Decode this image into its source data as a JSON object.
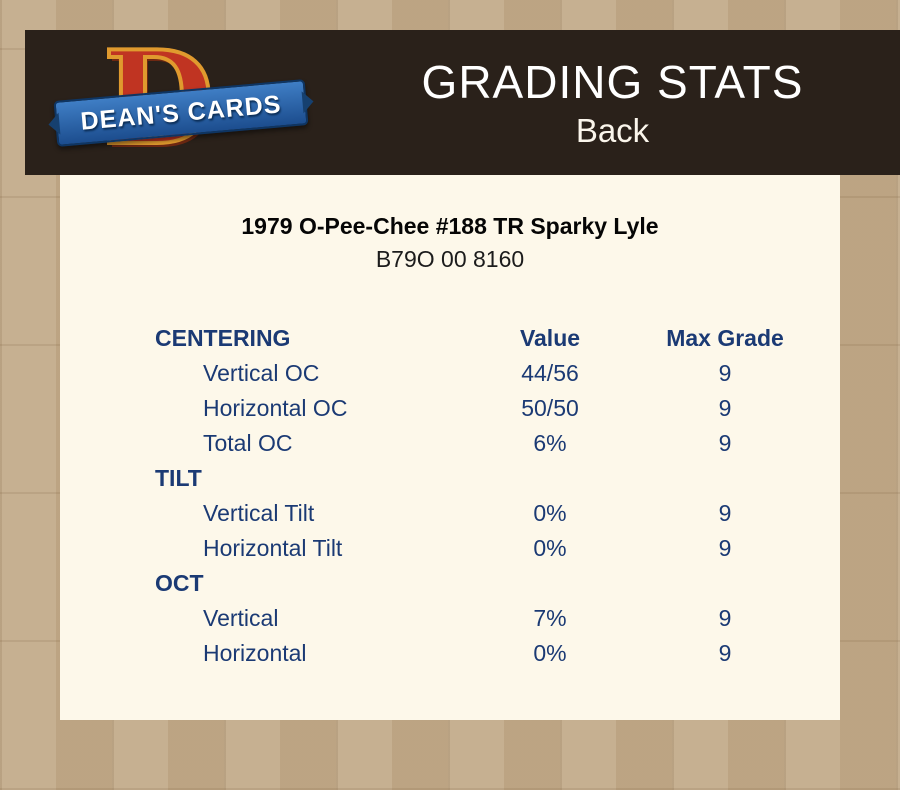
{
  "header": {
    "title": "GRADING STATS",
    "subtitle": "Back"
  },
  "logo": {
    "letter": "D",
    "brand": "DEAN'S CARDS"
  },
  "card": {
    "title": "1979 O-Pee-Chee #188 TR Sparky Lyle",
    "serial": "B79O 00 8160"
  },
  "table": {
    "col_value": "Value",
    "col_max": "Max Grade",
    "sections": [
      {
        "name": "CENTERING",
        "rows": [
          {
            "label": "Vertical OC",
            "value": "44/56",
            "max": "9"
          },
          {
            "label": "Horizontal OC",
            "value": "50/50",
            "max": "9"
          },
          {
            "label": "Total OC",
            "value": "6%",
            "max": "9"
          }
        ]
      },
      {
        "name": "TILT",
        "rows": [
          {
            "label": "Vertical Tilt",
            "value": "0%",
            "max": "9"
          },
          {
            "label": "Horizontal Tilt",
            "value": "0%",
            "max": "9"
          }
        ]
      },
      {
        "name": "OCT",
        "rows": [
          {
            "label": "Vertical",
            "value": "7%",
            "max": "9"
          },
          {
            "label": "Horizontal",
            "value": "0%",
            "max": "9"
          }
        ]
      }
    ]
  },
  "colors": {
    "header_background": "#2a211a",
    "page_background": "#c0a888",
    "panel_background": "#fdf8ea",
    "table_text_blue": "#1b3a74",
    "logo_red": "#c03422",
    "logo_gold": "#e09a2e",
    "logo_ribbon_blue": "#1c4d8e",
    "header_text": "#ffffff"
  }
}
